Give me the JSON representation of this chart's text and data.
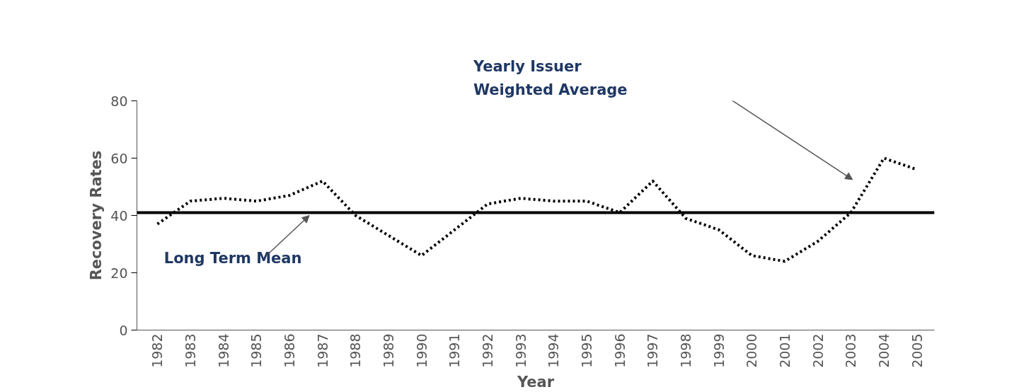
{
  "chart_data": {
    "type": "line",
    "xlabel": "Year",
    "ylabel": "Recovery Rates",
    "categories": [
      "1982",
      "1983",
      "1984",
      "1985",
      "1986",
      "1987",
      "1988",
      "1989",
      "1990",
      "1991",
      "1992",
      "1993",
      "1994",
      "1995",
      "1996",
      "1997",
      "1998",
      "1999",
      "2000",
      "2001",
      "2002",
      "2003",
      "2004",
      "2005"
    ],
    "series": [
      {
        "color": "#000000",
        "values": [
          37,
          45,
          46,
          45,
          47,
          52,
          40,
          33,
          26,
          35,
          44,
          46,
          45,
          45,
          41,
          52,
          39,
          35,
          26,
          24,
          31,
          41,
          60,
          56
        ]
      }
    ],
    "line_style": "dotted",
    "marker": "none",
    "ylim": [
      0,
      80
    ],
    "yticks": [
      0,
      20,
      40,
      60,
      80
    ],
    "grid": false,
    "ref_lines": [
      {
        "axis": "y",
        "value": 41,
        "label": "Long Term Mean",
        "color": "#000000",
        "line_style": "solid"
      }
    ],
    "annotations": [
      "Yearly Issuer\nWeighted Average"
    ]
  }
}
